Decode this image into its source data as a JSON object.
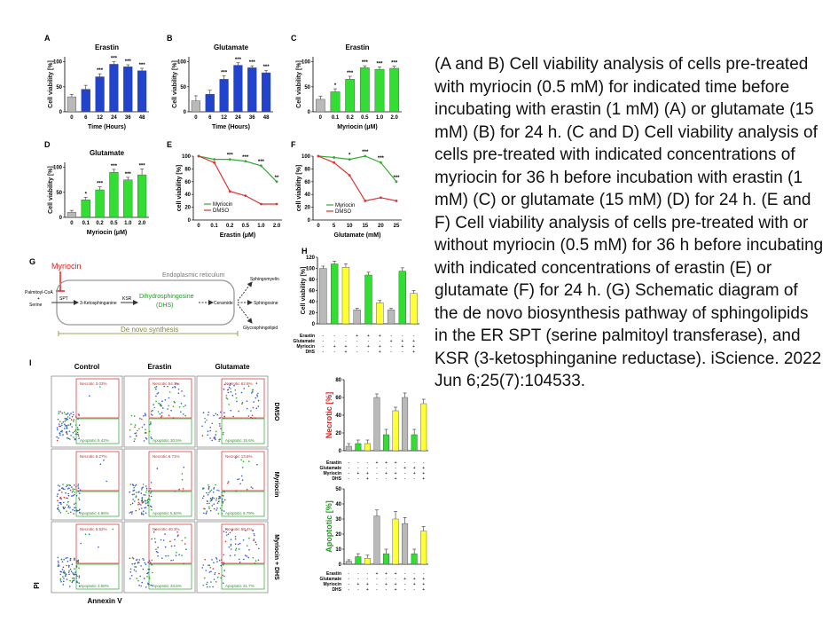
{
  "caption": "(A and B) Cell viability analysis of cells pre-treated with myriocin (0.5 mM) for indicated time before incubating with erastin (1 mM) (A) or glutamate (15 mM) (B) for 24 h. (C and D) Cell viability analysis of cells pre-treated with indicated concentrations of myriocin for 36 h before incubation with erastin (1 mM) (C) or glutamate (15 mM) (D) for 24 h. (E and F) Cell viability analysis of cells pre-treated with or without myriocin (0.5 mM) for 36 h before incubating with indicated concentrations of erastin (E) or glutamate (F) for 24 h. (G) Schematic diagram of the de novo biosynthesis pathway of sphingolipids in the ER SPT (serine palmitoyl transferase), and KSR (3-ketosphinganine reductase). iScience. 2022 Jun 6;25(7):104533.",
  "colors": {
    "gray": "#b9b9b9",
    "green": "#33dd33",
    "red": "#dd3333",
    "yellow": "#ffff33",
    "blue": "#2244cc"
  },
  "chart_data": [
    {
      "panel": "A",
      "type": "bar",
      "title": "Erastin",
      "xlabel": "Time (Hours)",
      "ylabel": "Cell viability [%]",
      "categories": [
        "0",
        "6",
        "12",
        "24",
        "36",
        "48"
      ],
      "values": [
        30,
        45,
        70,
        95,
        90,
        82
      ],
      "errors": [
        5,
        8,
        6,
        5,
        4,
        5
      ],
      "sig": [
        "",
        "",
        "***",
        "***",
        "***",
        "***"
      ],
      "ylim": [
        0,
        110
      ],
      "colors": [
        "gray",
        "blue",
        "blue",
        "blue",
        "blue",
        "blue"
      ]
    },
    {
      "panel": "B",
      "type": "bar",
      "title": "Glutamate",
      "xlabel": "Time (Hours)",
      "ylabel": "Cell viability [%]",
      "categories": [
        "0",
        "6",
        "12",
        "24",
        "36",
        "48"
      ],
      "values": [
        22,
        35,
        65,
        93,
        88,
        78
      ],
      "errors": [
        10,
        8,
        7,
        5,
        4,
        5
      ],
      "sig": [
        "",
        "",
        "***",
        "***",
        "***",
        "***"
      ],
      "ylim": [
        0,
        110
      ],
      "colors": [
        "gray",
        "blue",
        "blue",
        "blue",
        "blue",
        "blue"
      ]
    },
    {
      "panel": "C",
      "type": "bar",
      "title": "Erastin",
      "xlabel": "Myriocin (μM)",
      "ylabel": "Cell viability [%]",
      "categories": [
        "0",
        "0.1",
        "0.2",
        "0.5",
        "1.0",
        "2.0"
      ],
      "values": [
        25,
        40,
        65,
        88,
        85,
        87
      ],
      "errors": [
        6,
        6,
        6,
        4,
        5,
        4
      ],
      "sig": [
        "",
        "*",
        "***",
        "***",
        "***",
        "***"
      ],
      "ylim": [
        0,
        110
      ],
      "colors": [
        "gray",
        "green",
        "green",
        "green",
        "green",
        "green"
      ]
    },
    {
      "panel": "D",
      "type": "bar",
      "title": "Glutamate",
      "xlabel": "Myriocin (μM)",
      "ylabel": "Cell viability [%]",
      "categories": [
        "0",
        "0.1",
        "0.2",
        "0.5",
        "1.0",
        "2.0"
      ],
      "values": [
        10,
        35,
        55,
        90,
        75,
        85
      ],
      "errors": [
        4,
        5,
        6,
        6,
        5,
        12
      ],
      "sig": [
        "",
        "*",
        "***",
        "***",
        "***",
        "***"
      ],
      "ylim": [
        0,
        110
      ],
      "colors": [
        "gray",
        "green",
        "green",
        "green",
        "green",
        "green"
      ]
    },
    {
      "panel": "E",
      "type": "line",
      "xlabel": "Erastin (μM)",
      "ylabel": "cell viability [%]",
      "x": [
        "0",
        "0.1",
        "0.2",
        "0.5",
        "1.0",
        "2.0"
      ],
      "series": [
        {
          "name": "Myriocin",
          "color": "green",
          "values": [
            100,
            95,
            95,
            92,
            85,
            60
          ]
        },
        {
          "name": "DMSO",
          "color": "red",
          "values": [
            100,
            90,
            45,
            38,
            25,
            25
          ]
        }
      ],
      "sig": [
        "",
        "",
        "***",
        "***",
        "***",
        "**"
      ],
      "ylim": [
        0,
        100
      ],
      "yticks": [
        "0",
        "20",
        "40",
        "60",
        "80",
        "100"
      ]
    },
    {
      "panel": "F",
      "type": "line",
      "xlabel": "Glutamate (mM)",
      "ylabel": "cell viability [%]",
      "x": [
        "0",
        "5",
        "10",
        "15",
        "20",
        "25"
      ],
      "series": [
        {
          "name": "Myriocin",
          "color": "green",
          "values": [
            100,
            98,
            95,
            100,
            90,
            60
          ]
        },
        {
          "name": "DMSO",
          "color": "red",
          "values": [
            100,
            90,
            70,
            30,
            35,
            30
          ]
        }
      ],
      "sig": [
        "",
        "",
        "*",
        "***",
        "***",
        "***"
      ],
      "ylim": [
        0,
        100
      ],
      "yticks": [
        "0",
        "20",
        "40",
        "60",
        "80",
        "100"
      ]
    },
    {
      "panel": "H",
      "type": "bar",
      "ylabel": "Cell viability [%]",
      "values": [
        100,
        108,
        102,
        25,
        88,
        38,
        25,
        95,
        55
      ],
      "errors": [
        4,
        5,
        6,
        3,
        5,
        4,
        3,
        6,
        5
      ],
      "colors": [
        "gray",
        "green",
        "yellow",
        "gray",
        "green",
        "yellow",
        "gray",
        "green",
        "yellow"
      ],
      "ylim": [
        0,
        120
      ],
      "yticks": [
        "0",
        "20",
        "40",
        "60",
        "80",
        "100",
        "120"
      ]
    },
    {
      "panel": "I-necrotic",
      "type": "bar",
      "ylabel": "Necrotic [%]",
      "values": [
        5,
        8,
        8,
        60,
        18,
        45,
        60,
        18,
        53
      ],
      "errors": [
        3,
        4,
        4,
        4,
        6,
        4,
        5,
        6,
        5
      ],
      "colors": [
        "gray",
        "green",
        "yellow",
        "gray",
        "green",
        "yellow",
        "gray",
        "green",
        "yellow"
      ],
      "ylim": [
        0,
        80
      ],
      "yticks": [
        "0",
        "20",
        "40",
        "60",
        "80"
      ]
    },
    {
      "panel": "I-apoptotic",
      "type": "bar",
      "ylabel": "Apoptotic [%]",
      "values": [
        2,
        5,
        4,
        32,
        7,
        30,
        27,
        7,
        22
      ],
      "errors": [
        1,
        2,
        2,
        4,
        3,
        5,
        4,
        3,
        3
      ],
      "colors": [
        "gray",
        "green",
        "yellow",
        "gray",
        "green",
        "yellow",
        "gray",
        "green",
        "yellow"
      ],
      "ylim": [
        0,
        50
      ],
      "yticks": [
        "0",
        "10",
        "20",
        "30",
        "40",
        "50"
      ]
    }
  ],
  "panel_letters": {
    "A": "A",
    "B": "B",
    "C": "C",
    "D": "D",
    "E": "E",
    "F": "F",
    "G": "G",
    "H": "H",
    "I": "I"
  },
  "legend_E": {
    "myriocin": "Myriocin",
    "dmso": "DMSO"
  },
  "legend_F": {
    "myriocin": "Myriocin",
    "dmso": "DMSO"
  },
  "schematic": {
    "myriocin": "Myriocin",
    "er_label": "Endoplasmic reticulum",
    "palmitoyl": "Palmitoyl-CoA",
    "plus": "+",
    "serine": "Serine",
    "spt": "SPT",
    "keto": "3-Ketosphinganine",
    "ksr": "KSR",
    "dhs": "Dihydrosphingosine",
    "dhs_abbr": "(DHS)",
    "ceramide": "Ceramide",
    "sphingomyelin": "Sphingomyelin",
    "sphingosine": "Sphingosine",
    "glyco": "Glycosphingolipid",
    "denovo": "De novo synthesis"
  },
  "treatment_table": {
    "rows": [
      "Erastin",
      "Glutamate",
      "Myriocin",
      "DHS"
    ],
    "H": [
      [
        "-",
        "-",
        "-",
        "+",
        "+",
        "+",
        "-",
        "-",
        "-"
      ],
      [
        "-",
        "-",
        "-",
        "-",
        "-",
        "-",
        "+",
        "+",
        "+"
      ],
      [
        "-",
        "+",
        "+",
        "-",
        "+",
        "+",
        "-",
        "+",
        "+"
      ],
      [
        "-",
        "-",
        "+",
        "-",
        "-",
        "+",
        "-",
        "-",
        "+"
      ]
    ]
  },
  "flow": {
    "cols": [
      "Control",
      "Erastin",
      "Glutamate"
    ],
    "rows": [
      "DMSO",
      "Myriocin",
      "Myriocin + DHS"
    ],
    "xaxis": "Annexin V",
    "yaxis": "PI",
    "cells": [
      [
        {
          "n": "Necrotic 3.03%",
          "a": "Apoptotic 5.42%"
        },
        {
          "n": "Necrotic 54.7%",
          "a": "Apoptotic 30.5%"
        },
        {
          "n": "Necrotic 62.6%",
          "a": "Apoptotic 15.6%"
        }
      ],
      [
        {
          "n": "Necrotic 6.27%",
          "a": "Apoptotic 4.86%"
        },
        {
          "n": "Necrotic 6.71%",
          "a": "Apoptotic 5.64%"
        },
        {
          "n": "Necrotic 13.6%",
          "a": "Apoptotic 6.79%"
        }
      ],
      [
        {
          "n": "Necrotic 5.52%",
          "a": "Apoptotic 3.58%"
        },
        {
          "n": "Necrotic 40.3%",
          "a": "Apoptotic 33.5%"
        },
        {
          "n": "Necrotic 58.4%",
          "a": "Apoptotic 21.7%"
        }
      ]
    ]
  }
}
